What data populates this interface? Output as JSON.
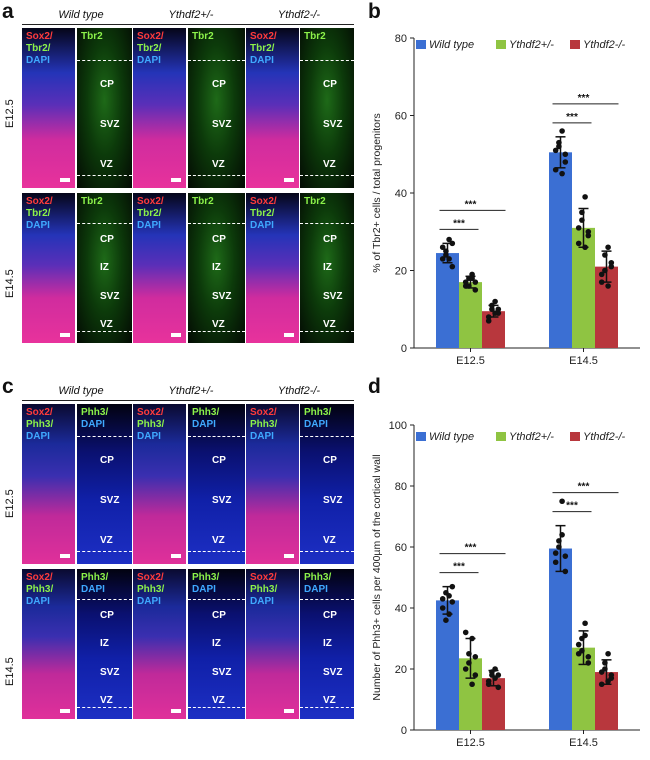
{
  "panels": {
    "a": {
      "letter": "a",
      "genotypes": [
        "Wild type",
        "Ythdf2+/-",
        "Ythdf2-/-"
      ],
      "stages": [
        "E12.5",
        "E14.5"
      ],
      "merge_label": [
        "Sox2/",
        "Tbr2/",
        "DAPI"
      ],
      "single_label": "Tbr2",
      "zones_e125": [
        "CP",
        "SVZ",
        "VZ"
      ],
      "zones_e145": [
        "CP",
        "IZ",
        "SVZ",
        "VZ"
      ]
    },
    "c": {
      "letter": "c",
      "genotypes": [
        "Wild type",
        "Ythdf2+/-",
        "Ythdf2-/-"
      ],
      "stages": [
        "E12.5",
        "E14.5"
      ],
      "merge_label": [
        "Sox2/",
        "Phh3/",
        "DAPI"
      ],
      "single_label": [
        "Phh3/",
        "DAPI"
      ],
      "zones_e125": [
        "CP",
        "SVZ",
        "VZ"
      ],
      "zones_e145": [
        "CP",
        "IZ",
        "SVZ",
        "VZ"
      ]
    }
  },
  "colors": {
    "wild_type": "#3b6fd3",
    "het": "#8fc442",
    "ko": "#b8373d"
  },
  "chart_data": [
    {
      "letter": "b",
      "type": "bar",
      "ylabel": "% of Tbr2+ cells / total progenitors",
      "ylim": [
        0,
        80
      ],
      "yticks": [
        0,
        20,
        40,
        60,
        80
      ],
      "categories": [
        "E12.5",
        "E14.5"
      ],
      "series": [
        {
          "name": "Wild type",
          "values": [
            24.5,
            50.5
          ],
          "errors": [
            2.5,
            4.0
          ]
        },
        {
          "name": "Ythdf2+/-",
          "values": [
            17.0,
            31.0
          ],
          "errors": [
            1.5,
            5.0
          ]
        },
        {
          "name": "Ythdf2-/-",
          "values": [
            9.5,
            21.0
          ],
          "errors": [
            1.5,
            4.0
          ]
        }
      ],
      "points": [
        [
          [
            23,
            25,
            28,
            21,
            26,
            24,
            23,
            27
          ],
          [
            46,
            52,
            56,
            48,
            51,
            53,
            45,
            50
          ]
        ],
        [
          [
            16,
            18,
            19,
            15,
            17,
            16,
            18,
            17
          ],
          [
            27,
            33,
            39,
            29,
            31,
            35,
            26,
            30
          ]
        ],
        [
          [
            8,
            10,
            12,
            9,
            7,
            11,
            9,
            10
          ],
          [
            17,
            20,
            26,
            22,
            19,
            24,
            16,
            21
          ]
        ]
      ],
      "significance": [
        "***",
        "***",
        "***",
        "***"
      ],
      "legend_position": "top"
    },
    {
      "letter": "d",
      "type": "bar",
      "ylabel": "Number of Phh3+ cells per 400µm of the cortical wall",
      "ylim": [
        0,
        100
      ],
      "yticks": [
        0,
        20,
        40,
        60,
        80,
        100
      ],
      "categories": [
        "E12.5",
        "E14.5"
      ],
      "series": [
        {
          "name": "Wild type",
          "values": [
            42.5,
            59.5
          ],
          "errors": [
            4.5,
            7.5
          ]
        },
        {
          "name": "Ythdf2+/-",
          "values": [
            23.5,
            27.0
          ],
          "errors": [
            6.5,
            5.5
          ]
        },
        {
          "name": "Ythdf2-/-",
          "values": [
            17.0,
            19.0
          ],
          "errors": [
            2.5,
            4.0
          ]
        }
      ],
      "points": [
        [
          [
            40,
            45,
            38,
            47,
            43,
            36,
            44,
            42
          ],
          [
            55,
            60,
            75,
            52,
            58,
            62,
            64,
            57
          ]
        ],
        [
          [
            20,
            25,
            30,
            18,
            32,
            22,
            15,
            24
          ],
          [
            25,
            30,
            35,
            22,
            28,
            26,
            31,
            24
          ]
        ],
        [
          [
            15,
            18,
            20,
            14,
            16,
            19,
            17,
            18
          ],
          [
            15,
            20,
            25,
            17,
            19,
            22,
            16,
            18
          ]
        ]
      ],
      "significance": [
        "***",
        "***",
        "***",
        "***"
      ],
      "legend_position": "top"
    }
  ]
}
